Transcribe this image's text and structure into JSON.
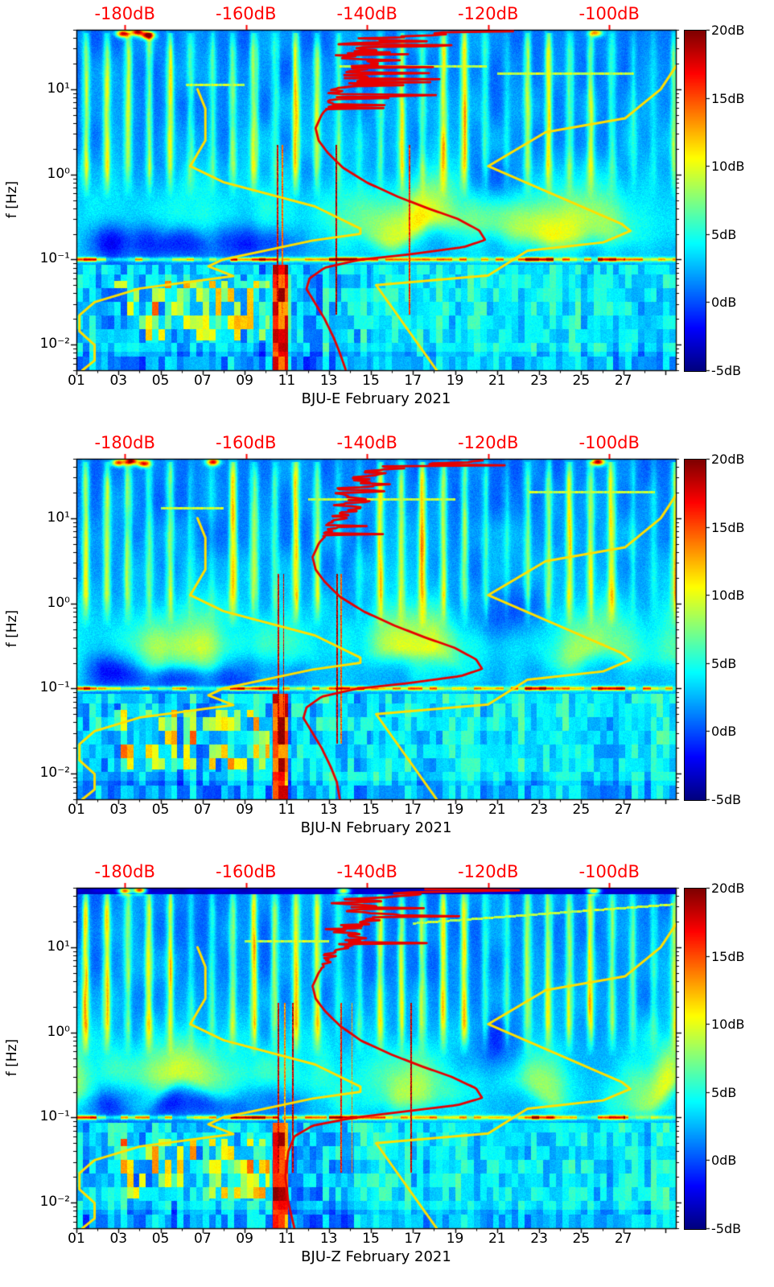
{
  "page": {
    "background": "#ffffff"
  },
  "colors": {
    "top_axis_text": "#ff0000",
    "noise_model_curve": "#ffdf00",
    "psd_curve": "#e60000",
    "axis": "#000000",
    "tick_text": "#000000"
  },
  "chart_data": {
    "type": "heatmap",
    "subtype": "seismic-spectrogram",
    "description": "Three stacked PSD spectrograms (jet colormap, dB) for station BJU components E, N, Z during February 2021. Yellow overlays are the Peterson NLNM/NHNM noise models and the red overlay is the station median PSD, both plotted against the red top dB axis.",
    "x_axis": {
      "tick_labels": [
        "01",
        "03",
        "05",
        "07",
        "09",
        "11",
        "13",
        "15",
        "17",
        "19",
        "21",
        "23",
        "25",
        "27"
      ],
      "tick_days": [
        1,
        3,
        5,
        7,
        9,
        11,
        13,
        15,
        17,
        19,
        21,
        23,
        25,
        27
      ],
      "range_days": [
        1,
        29.5
      ]
    },
    "y_axis": {
      "label": "f [Hz]",
      "scale": "log",
      "tick_labels": [
        "10¹",
        "10⁰",
        "10⁻¹",
        "10⁻²"
      ],
      "tick_values": [
        10,
        1,
        0.1,
        0.01
      ],
      "range_hz": [
        0.005,
        50
      ]
    },
    "top_axis": {
      "labels": [
        "-180dB",
        "-160dB",
        "-140dB",
        "-120dB",
        "-100dB"
      ],
      "values": [
        -180,
        -160,
        -140,
        -120,
        -100
      ],
      "range_db": [
        -188,
        -89
      ]
    },
    "colorbar": {
      "tick_labels": [
        "20dB",
        "15dB",
        "10dB",
        "5dB",
        "0dB",
        "-5dB"
      ],
      "tick_values": [
        20,
        15,
        10,
        5,
        0,
        -5
      ],
      "range_db": [
        -5,
        20
      ],
      "colormap": "jet"
    },
    "hot_band_0p1hz_segments_days": [
      [
        1,
        1.95
      ],
      [
        8.3,
        10.6
      ],
      [
        13,
        14.7
      ],
      [
        22.3,
        23.7
      ],
      [
        25.8,
        27.1
      ]
    ],
    "noise_models": {
      "nlnm_yellow": [
        [
          10,
          -168
        ],
        [
          5.9,
          -166.7
        ],
        [
          2.5,
          -166.7
        ],
        [
          1.25,
          -169.2
        ],
        [
          0.81,
          -163.7
        ],
        [
          0.42,
          -148.6
        ],
        [
          0.23,
          -141.1
        ],
        [
          0.2,
          -141.1
        ],
        [
          0.167,
          -149
        ],
        [
          0.1,
          -163.8
        ],
        [
          0.083,
          -166.2
        ],
        [
          0.064,
          -162.1
        ],
        [
          0.0457,
          -177.5
        ],
        [
          0.0316,
          -185
        ],
        [
          0.0222,
          -187.5
        ],
        [
          0.0143,
          -187.5
        ],
        [
          0.0099,
          -185
        ],
        [
          0.0065,
          -185
        ],
        [
          0.005,
          -187
        ]
      ],
      "nhnm_yellow": [
        [
          50,
          -85
        ],
        [
          10,
          -91.5
        ],
        [
          4.55,
          -97.4
        ],
        [
          3.13,
          -110.5
        ],
        [
          1.25,
          -120
        ],
        [
          0.263,
          -98
        ],
        [
          0.217,
          -96.5
        ],
        [
          0.159,
          -101
        ],
        [
          0.127,
          -113.5
        ],
        [
          0.065,
          -120
        ],
        [
          0.05,
          -138.5
        ],
        [
          0.005,
          -128.5
        ]
      ]
    },
    "panels": [
      {
        "station": "BJU-E",
        "title": "BJU-E February 2021",
        "psd_curve_red": [
          [
            48,
            -121
          ],
          [
            40,
            -139
          ],
          [
            30,
            -140.5
          ],
          [
            20,
            -141
          ],
          [
            14,
            -142
          ],
          [
            10,
            -144
          ],
          [
            7,
            -146
          ],
          [
            5,
            -147.5
          ],
          [
            3.5,
            -148.5
          ],
          [
            2.5,
            -148
          ],
          [
            1.8,
            -146.5
          ],
          [
            1.2,
            -144
          ],
          [
            0.8,
            -140
          ],
          [
            0.55,
            -135
          ],
          [
            0.4,
            -130
          ],
          [
            0.3,
            -125
          ],
          [
            0.22,
            -121.5
          ],
          [
            0.17,
            -120.5
          ],
          [
            0.14,
            -124
          ],
          [
            0.115,
            -133
          ],
          [
            0.1,
            -141
          ],
          [
            0.08,
            -147
          ],
          [
            0.06,
            -149.5
          ],
          [
            0.045,
            -150
          ],
          [
            0.03,
            -148.5
          ],
          [
            0.02,
            -147
          ],
          [
            0.012,
            -145.5
          ],
          [
            0.008,
            -144.5
          ],
          [
            0.005,
            -143.5
          ]
        ],
        "event_lines_days": [
          10.55,
          10.8,
          13.35,
          16.85
        ],
        "top_hot_blobs": [
          [
            3.2,
            45
          ],
          [
            3.9,
            47
          ],
          [
            4.4,
            43
          ],
          [
            25.7,
            46
          ]
        ]
      },
      {
        "station": "BJU-N",
        "title": "BJU-N February 2021",
        "psd_curve_red": [
          [
            48,
            -122
          ],
          [
            40,
            -139.5
          ],
          [
            30,
            -141
          ],
          [
            20,
            -141.5
          ],
          [
            14,
            -142.5
          ],
          [
            10,
            -144.5
          ],
          [
            7,
            -146.5
          ],
          [
            5,
            -148
          ],
          [
            3.5,
            -149
          ],
          [
            2.5,
            -148.5
          ],
          [
            1.8,
            -147
          ],
          [
            1.2,
            -144.5
          ],
          [
            0.8,
            -140.5
          ],
          [
            0.55,
            -135.5
          ],
          [
            0.4,
            -130.5
          ],
          [
            0.3,
            -125.5
          ],
          [
            0.22,
            -122
          ],
          [
            0.17,
            -121
          ],
          [
            0.14,
            -124.5
          ],
          [
            0.115,
            -133.5
          ],
          [
            0.1,
            -141.5
          ],
          [
            0.08,
            -147.5
          ],
          [
            0.06,
            -150
          ],
          [
            0.045,
            -150.5
          ],
          [
            0.03,
            -149
          ],
          [
            0.02,
            -147.5
          ],
          [
            0.012,
            -146
          ],
          [
            0.008,
            -145
          ],
          [
            0.005,
            -144.5
          ]
        ],
        "event_lines_days": [
          10.6,
          10.85,
          13.4,
          13.6
        ],
        "top_hot_blobs": [
          [
            3.0,
            45
          ],
          [
            3.6,
            47
          ],
          [
            4.2,
            44
          ],
          [
            25.8,
            46
          ],
          [
            7.5,
            46
          ]
        ]
      },
      {
        "station": "BJU-Z",
        "title": "BJU-Z February 2021",
        "psd_curve_red": [
          [
            48,
            -121.5
          ],
          [
            40,
            -139
          ],
          [
            30,
            -140.5
          ],
          [
            20,
            -141.5
          ],
          [
            14,
            -142.5
          ],
          [
            10,
            -144.5
          ],
          [
            7,
            -146.5
          ],
          [
            5,
            -148
          ],
          [
            3.5,
            -149
          ],
          [
            2.5,
            -148.5
          ],
          [
            1.8,
            -147
          ],
          [
            1.2,
            -144.5
          ],
          [
            0.8,
            -141
          ],
          [
            0.55,
            -136
          ],
          [
            0.4,
            -131
          ],
          [
            0.3,
            -126
          ],
          [
            0.22,
            -122
          ],
          [
            0.17,
            -121
          ],
          [
            0.14,
            -125
          ],
          [
            0.115,
            -135
          ],
          [
            0.1,
            -142
          ],
          [
            0.08,
            -149
          ],
          [
            0.06,
            -152
          ],
          [
            0.04,
            -153
          ],
          [
            0.02,
            -153.5
          ],
          [
            0.01,
            -153
          ],
          [
            0.005,
            -152
          ]
        ],
        "event_lines_days": [
          10.6,
          10.9,
          11.3,
          13.6,
          14.1,
          16.9
        ],
        "top_hot_blobs": [
          [
            3.3,
            46
          ],
          [
            4.0,
            47
          ],
          [
            13.7,
            46
          ],
          [
            25.6,
            46
          ]
        ]
      }
    ]
  }
}
